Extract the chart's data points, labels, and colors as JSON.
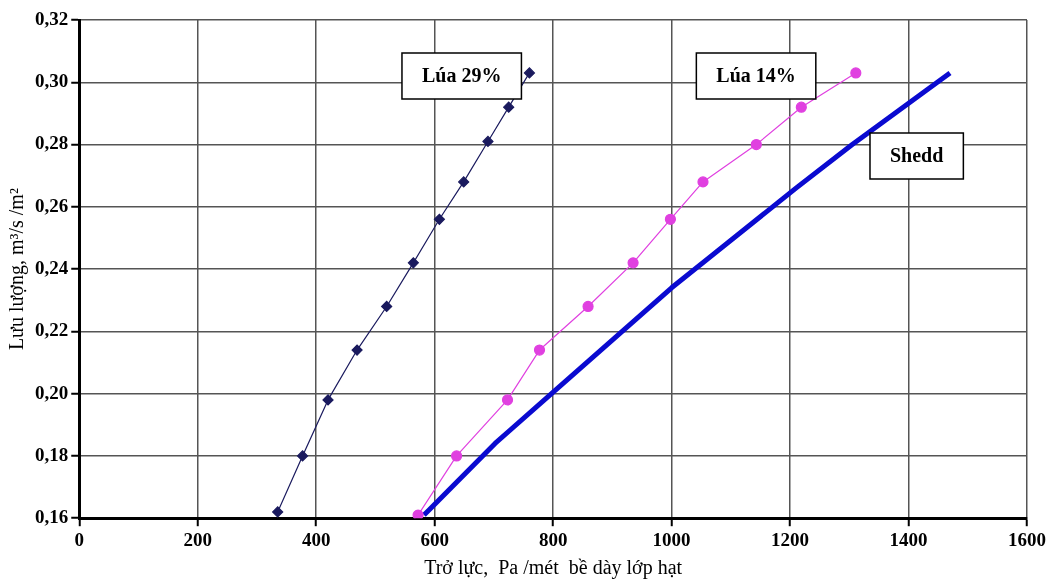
{
  "chart_data": {
    "type": "line",
    "xlabel": "Trở lực,  Pa /mét  bề dày lớp hạt",
    "ylabel": "Lưu lượng, m³/s /m²",
    "xlim": [
      0,
      1600
    ],
    "xticks": [
      0,
      200,
      400,
      600,
      800,
      1000,
      1200,
      1400,
      1600
    ],
    "ylim": [
      0.16,
      0.32
    ],
    "yticks": [
      {
        "value": 0.16,
        "label": "0,16"
      },
      {
        "value": 0.18,
        "label": "0,18"
      },
      {
        "value": 0.2,
        "label": "0,20"
      },
      {
        "value": 0.22,
        "label": "0,22"
      },
      {
        "value": 0.24,
        "label": "0,24"
      },
      {
        "value": 0.26,
        "label": "0,26"
      },
      {
        "value": 0.28,
        "label": "0,28"
      },
      {
        "value": 0.3,
        "label": "0,30"
      },
      {
        "value": 0.32,
        "label": "0,32"
      }
    ],
    "grid": true,
    "series": [
      {
        "name": "Lúa 29%",
        "color": "#1a1a5e",
        "marker": "diamond",
        "x": [
          335,
          377,
          420,
          469,
          519,
          564,
          608,
          649,
          690,
          725,
          760
        ],
        "values": [
          0.162,
          0.18,
          0.198,
          0.214,
          0.228,
          0.242,
          0.256,
          0.268,
          0.281,
          0.292,
          0.303
        ]
      },
      {
        "name": "Lúa 14%",
        "color": "#e040e0",
        "marker": "circle",
        "x": [
          572,
          637,
          723,
          777,
          859,
          935,
          998,
          1053,
          1143,
          1219,
          1311
        ],
        "values": [
          0.161,
          0.18,
          0.198,
          0.214,
          0.228,
          0.242,
          0.256,
          0.268,
          0.28,
          0.292,
          0.303
        ]
      },
      {
        "name": "Shedd",
        "color": "#0a0ad0",
        "marker": "none",
        "x": [
          582,
          702,
          803,
          1000,
          1210,
          1305,
          1470
        ],
        "values": [
          0.161,
          0.184,
          0.201,
          0.234,
          0.266,
          0.28,
          0.303
        ]
      }
    ]
  }
}
